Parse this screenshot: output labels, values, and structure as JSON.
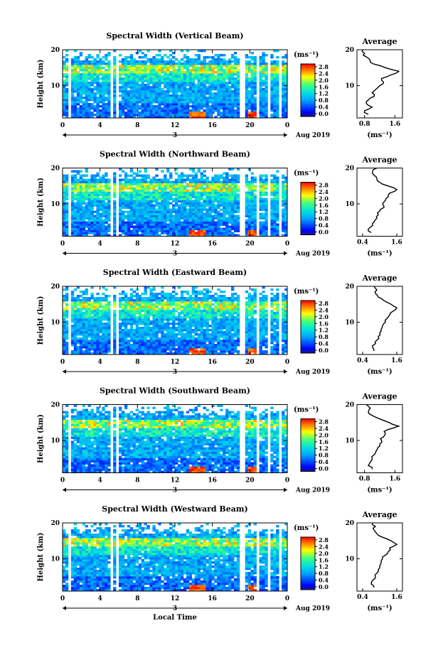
{
  "chart_data": [
    {
      "type": "heatmap",
      "title": "Spectral Width (Vertical Beam)",
      "ylabel": "Height (km)",
      "xlim": [
        0,
        24
      ],
      "ylim": [
        1,
        20
      ],
      "x_ticks": [
        "0",
        "4",
        "8",
        "12",
        "16",
        "20",
        "0"
      ],
      "y_ticks": [
        "20",
        "10"
      ],
      "day_label": "3",
      "date_label": "Aug 2019",
      "colorbar": {
        "unit": "(ms⁻¹)",
        "ticks": [
          "2.8",
          "2.4",
          "2.0",
          "1.6",
          "1.2",
          "0.8",
          "0.4",
          "0.0"
        ]
      },
      "gaps_hours": [
        [
          0.5,
          1.0
        ],
        [
          5.0,
          5.3
        ],
        [
          5.6,
          5.9
        ],
        [
          18.8,
          19.4
        ],
        [
          20.7,
          21.1
        ],
        [
          21.8,
          22.2
        ],
        [
          23.0,
          23.3
        ]
      ],
      "profile": {
        "title": "Average",
        "xlabel": "(ms⁻¹)",
        "x_ticks": [
          "0.8",
          "1.6"
        ],
        "y_ticks": [
          "20",
          "10"
        ],
        "xlim": [
          0.6,
          1.8
        ],
        "heights": [
          2,
          3,
          4,
          5,
          6,
          7,
          8,
          9,
          10,
          11,
          12,
          13,
          14,
          15,
          16,
          17,
          18,
          19,
          20
        ],
        "values": [
          0.9,
          0.8,
          1.0,
          0.85,
          0.9,
          1.05,
          1.0,
          1.1,
          1.2,
          1.3,
          1.25,
          1.5,
          1.7,
          1.35,
          1.05,
          0.95,
          0.85,
          0.8,
          0.75
        ]
      }
    },
    {
      "type": "heatmap",
      "title": "Spectral Width (Northward Beam)",
      "ylabel": "Height (km)",
      "xlim": [
        0,
        24
      ],
      "ylim": [
        1,
        20
      ],
      "x_ticks": [
        "0",
        "4",
        "8",
        "12",
        "16",
        "20",
        "0"
      ],
      "y_ticks": [
        "20",
        "10"
      ],
      "day_label": "3",
      "date_label": "Aug 2019",
      "colorbar": {
        "unit": "(ms⁻¹)",
        "ticks": [
          "2.8",
          "2.4",
          "2.0",
          "1.6",
          "1.2",
          "0.8",
          "0.4",
          "0.0"
        ]
      },
      "gaps_hours": [
        [
          0.5,
          1.0
        ],
        [
          5.0,
          5.3
        ],
        [
          5.6,
          5.9
        ],
        [
          18.8,
          19.4
        ],
        [
          20.7,
          21.1
        ],
        [
          21.8,
          22.2
        ],
        [
          23.0,
          23.3
        ]
      ],
      "profile": {
        "title": "Average",
        "xlabel": "(ms⁻¹)",
        "x_ticks": [
          "0.4",
          "1.6"
        ],
        "y_ticks": [
          "20",
          "10"
        ],
        "xlim": [
          0.2,
          1.8
        ],
        "heights": [
          2,
          3,
          4,
          5,
          6,
          7,
          8,
          9,
          10,
          11,
          12,
          13,
          14,
          15,
          16,
          17,
          18,
          19,
          20
        ],
        "values": [
          0.7,
          0.6,
          0.75,
          0.8,
          0.9,
          0.95,
          1.0,
          1.15,
          1.1,
          1.2,
          1.3,
          1.35,
          1.6,
          1.3,
          1.0,
          0.9,
          0.8,
          0.75,
          0.9
        ]
      }
    },
    {
      "type": "heatmap",
      "title": "Spectral Width (Eastward Beam)",
      "ylabel": "Height (km)",
      "xlim": [
        0,
        24
      ],
      "ylim": [
        1,
        20
      ],
      "x_ticks": [
        "0",
        "4",
        "8",
        "12",
        "16",
        "20",
        "0"
      ],
      "y_ticks": [
        "20",
        "10"
      ],
      "day_label": "3",
      "date_label": "Aug 2019",
      "colorbar": {
        "unit": "(ms⁻¹)",
        "ticks": [
          "2.8",
          "2.4",
          "2.0",
          "1.6",
          "1.2",
          "0.8",
          "0.4",
          "0.0"
        ]
      },
      "gaps_hours": [
        [
          0.5,
          1.0
        ],
        [
          5.0,
          5.3
        ],
        [
          5.6,
          5.9
        ],
        [
          18.8,
          19.4
        ],
        [
          20.7,
          21.1
        ],
        [
          21.8,
          22.2
        ],
        [
          23.0,
          23.3
        ]
      ],
      "profile": {
        "title": "Average",
        "xlabel": "(ms⁻¹)",
        "x_ticks": [
          "0.4",
          "1.6"
        ],
        "y_ticks": [
          "20",
          "10"
        ],
        "xlim": [
          0.2,
          1.8
        ],
        "heights": [
          2,
          3,
          4,
          5,
          6,
          7,
          8,
          9,
          10,
          11,
          12,
          13,
          14,
          15,
          16,
          17,
          18,
          19,
          20
        ],
        "values": [
          0.8,
          0.75,
          0.85,
          0.9,
          0.95,
          1.0,
          1.05,
          1.1,
          1.2,
          1.25,
          1.35,
          1.45,
          1.6,
          1.4,
          1.15,
          0.95,
          0.85,
          0.9,
          0.8
        ]
      }
    },
    {
      "type": "heatmap",
      "title": "Spectral Width (Southward Beam)",
      "ylabel": "Height (km)",
      "xlim": [
        0,
        24
      ],
      "ylim": [
        1,
        20
      ],
      "x_ticks": [
        "0",
        "4",
        "8",
        "12",
        "16",
        "20",
        "0"
      ],
      "y_ticks": [
        "20",
        "10"
      ],
      "day_label": "3",
      "date_label": "Aug 2019",
      "colorbar": {
        "unit": "(ms⁻¹)",
        "ticks": [
          "2.8",
          "2.4",
          "2.0",
          "1.6",
          "1.2",
          "0.8",
          "0.4",
          "0.0"
        ]
      },
      "gaps_hours": [
        [
          0.5,
          1.0
        ],
        [
          5.0,
          5.3
        ],
        [
          5.6,
          5.9
        ],
        [
          18.8,
          19.4
        ],
        [
          20.7,
          21.1
        ],
        [
          21.8,
          22.2
        ],
        [
          23.0,
          23.3
        ]
      ],
      "profile": {
        "title": "Average",
        "xlabel": "(ms⁻¹)",
        "x_ticks": [
          "0.8",
          "1.6"
        ],
        "y_ticks": [
          "20",
          "10"
        ],
        "xlim": [
          0.6,
          1.8
        ],
        "heights": [
          2,
          3,
          4,
          5,
          6,
          7,
          8,
          9,
          10,
          11,
          12,
          13,
          14,
          15,
          16,
          17,
          18,
          19,
          20
        ],
        "values": [
          1.0,
          0.9,
          0.95,
          1.0,
          1.05,
          1.1,
          1.15,
          1.2,
          1.25,
          1.3,
          1.35,
          1.4,
          1.7,
          1.45,
          1.2,
          1.0,
          0.9,
          0.95,
          0.85
        ]
      }
    },
    {
      "type": "heatmap",
      "title": "Spectral Width (Westward Beam)",
      "ylabel": "Height (km)",
      "xlabel": "Local Time",
      "xlim": [
        0,
        24
      ],
      "ylim": [
        1,
        20
      ],
      "x_ticks": [
        "0",
        "4",
        "8",
        "12",
        "16",
        "20",
        "0"
      ],
      "y_ticks": [
        "20",
        "10"
      ],
      "day_label": "3",
      "date_label": "Aug 2019",
      "colorbar": {
        "unit": "(ms⁻¹)",
        "ticks": [
          "2.8",
          "2.4",
          "2.0",
          "1.6",
          "1.2",
          "0.8",
          "0.4",
          "0.0"
        ]
      },
      "gaps_hours": [
        [
          0.5,
          1.0
        ],
        [
          5.0,
          5.3
        ],
        [
          5.6,
          5.9
        ],
        [
          18.8,
          19.4
        ],
        [
          20.7,
          21.1
        ],
        [
          21.8,
          22.2
        ],
        [
          23.0,
          23.3
        ]
      ],
      "profile": {
        "title": "Average",
        "xlabel": "(ms⁻¹)",
        "x_ticks": [
          "0.4",
          "1.6"
        ],
        "y_ticks": [
          "20",
          "10"
        ],
        "xlim": [
          0.2,
          1.8
        ],
        "heights": [
          2,
          3,
          4,
          5,
          6,
          7,
          8,
          9,
          10,
          11,
          12,
          13,
          14,
          15,
          16,
          17,
          18,
          19,
          20
        ],
        "values": [
          0.8,
          0.7,
          0.75,
          0.85,
          0.9,
          0.95,
          1.0,
          1.05,
          1.1,
          1.2,
          1.3,
          1.35,
          1.6,
          1.4,
          1.1,
          0.9,
          0.8,
          0.85,
          0.75
        ]
      }
    }
  ]
}
